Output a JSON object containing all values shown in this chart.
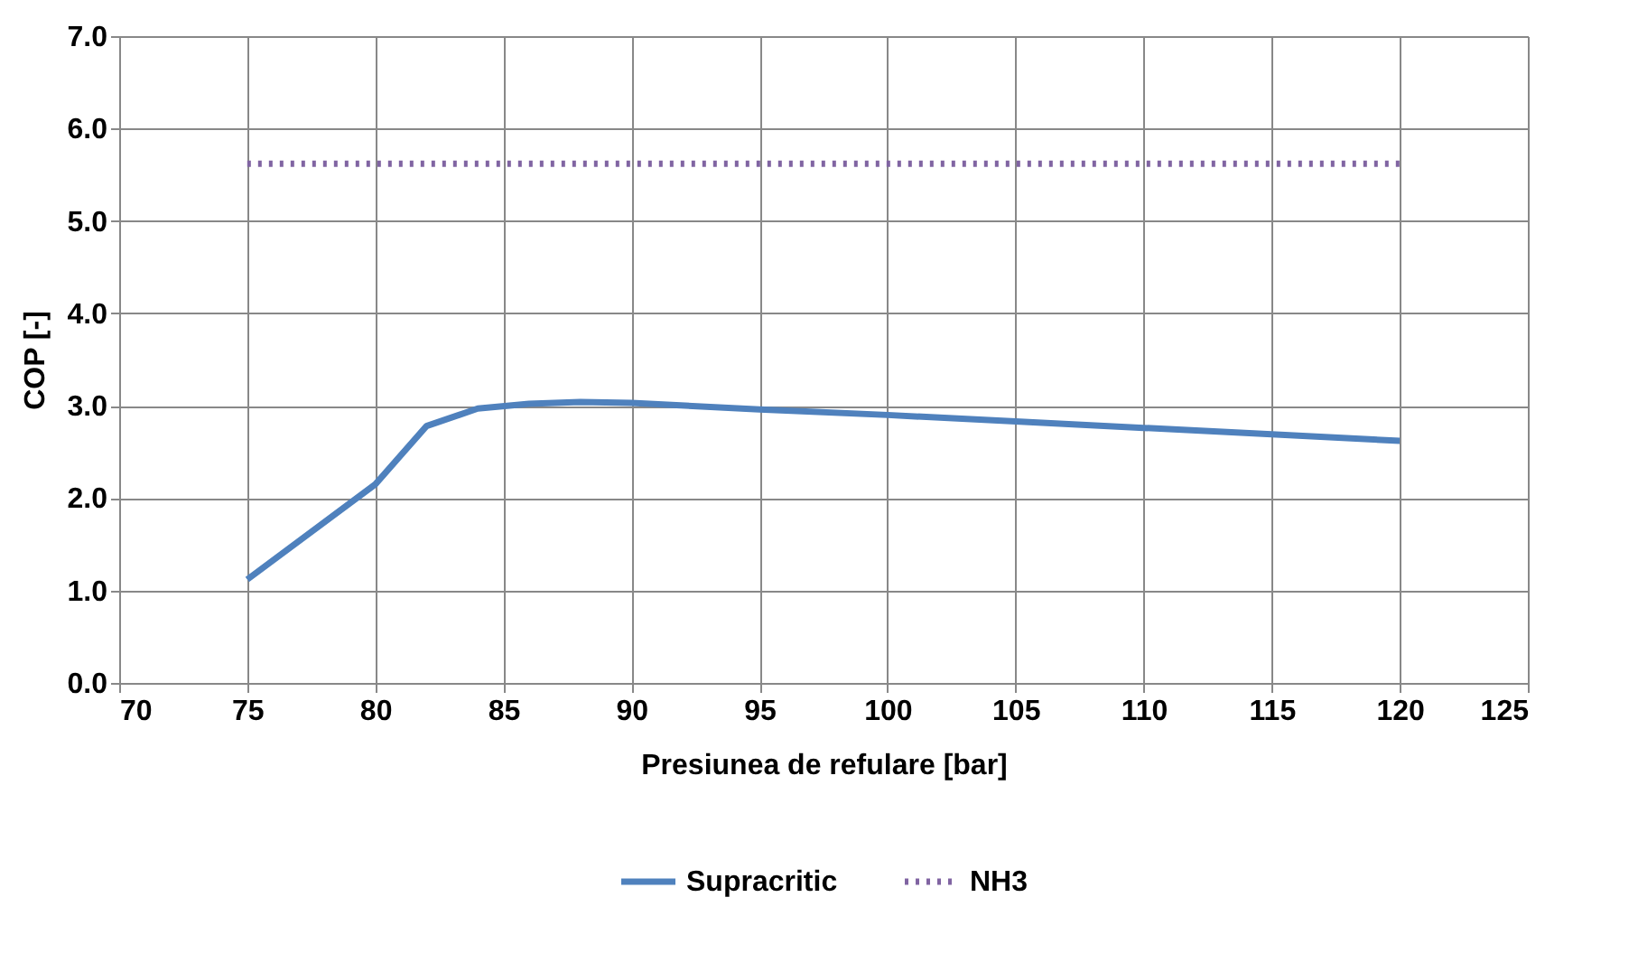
{
  "chart_data": {
    "type": "line",
    "xlabel": "Presiunea de refulare [bar]",
    "ylabel": "COP [-]",
    "x": [
      75,
      80,
      82,
      84,
      86,
      88,
      90,
      95,
      100,
      105,
      110,
      115,
      120
    ],
    "series": [
      {
        "name": "Supracritic",
        "color": "#4f81bd",
        "line_style": "solid",
        "values": [
          1.12,
          2.15,
          2.78,
          2.97,
          3.02,
          3.04,
          3.03,
          2.96,
          2.9,
          2.83,
          2.76,
          2.69,
          2.62
        ]
      },
      {
        "name": "NH3",
        "color": "#8064a2",
        "line_style": "dotted",
        "x": [
          75,
          120
        ],
        "values": [
          5.62,
          5.62
        ]
      }
    ],
    "xlim": [
      70,
      125
    ],
    "xticks": [
      70,
      75,
      80,
      85,
      90,
      95,
      100,
      105,
      110,
      115,
      120,
      125
    ],
    "ylim": [
      0,
      7
    ],
    "yticks": [
      {
        "value": 0,
        "label": "0.0"
      },
      {
        "value": 1,
        "label": "1.0"
      },
      {
        "value": 2,
        "label": "2.0"
      },
      {
        "value": 3,
        "label": "3.0"
      },
      {
        "value": 4,
        "label": "4.0"
      },
      {
        "value": 5,
        "label": "5.0"
      },
      {
        "value": 6,
        "label": "6.0"
      },
      {
        "value": 7,
        "label": "7.0"
      }
    ],
    "grid": true,
    "legend": "bottom",
    "marker": "none"
  }
}
